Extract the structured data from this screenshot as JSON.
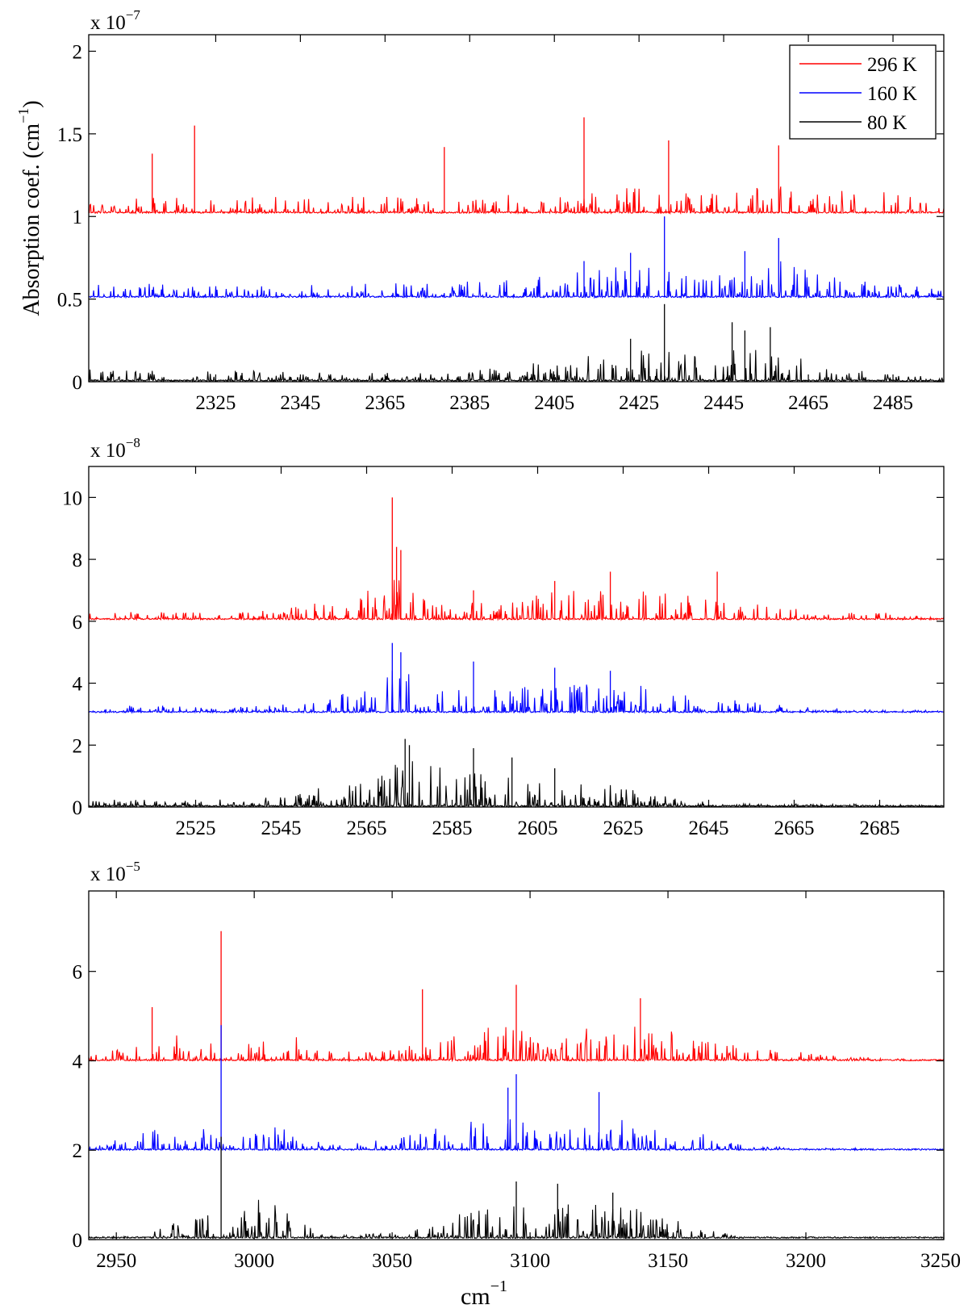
{
  "figure": {
    "ylabel": "Absorption coef. (cm",
    "ylabel_sup": "−1",
    "ylabel_tail": ")",
    "xlabel": "cm",
    "xlabel_sup": "−1"
  },
  "legend": [
    "296 K",
    "160 K",
    "80 K"
  ],
  "colors": {
    "296 K": "#ff0000",
    "160 K": "#0000ff",
    "80 K": "#000000"
  },
  "chart_data": [
    {
      "type": "line",
      "title": "",
      "exponent_prefix": "x 10",
      "exponent": "−7",
      "xlim": [
        2295,
        2497
      ],
      "ylim": [
        0,
        2.1e-07
      ],
      "yticks": [
        0,
        5e-08,
        1e-07,
        1.5e-07,
        2e-07
      ],
      "ytick_labels": [
        "0",
        "0.5",
        "1",
        "1.5",
        "2"
      ],
      "xticks": [
        2325,
        2345,
        2365,
        2385,
        2405,
        2425,
        2445,
        2465,
        2485
      ],
      "xtick_labels": [
        "2325",
        "2345",
        "2365",
        "2385",
        "2405",
        "2425",
        "2445",
        "2465",
        "2485"
      ],
      "series": [
        {
          "name": "296 K",
          "baseline": 1.02e-07,
          "envelope": [
            [
              2295,
              0.12
            ],
            [
              2330,
              0.12
            ],
            [
              2380,
              0.14
            ],
            [
              2410,
              0.18
            ],
            [
              2425,
              0.24
            ],
            [
              2440,
              0.16
            ],
            [
              2458,
              0.25
            ],
            [
              2480,
              0.18
            ],
            [
              2497,
              0.1
            ]
          ],
          "peaks": [
            [
              2310,
              1.38e-07
            ],
            [
              2320,
              1.55e-07
            ],
            [
              2379,
              1.42e-07
            ],
            [
              2412,
              1.6e-07
            ],
            [
              2432,
              1.46e-07
            ],
            [
              2458,
              1.43e-07
            ]
          ]
        },
        {
          "name": "160 K",
          "baseline": 5.1e-08,
          "envelope": [
            [
              2295,
              0.12
            ],
            [
              2330,
              0.1
            ],
            [
              2380,
              0.12
            ],
            [
              2410,
              0.2
            ],
            [
              2425,
              0.28
            ],
            [
              2440,
              0.15
            ],
            [
              2458,
              0.3
            ],
            [
              2480,
              0.14
            ],
            [
              2497,
              0.05
            ]
          ],
          "peaks": [
            [
              2412,
              7.3e-08
            ],
            [
              2423,
              7.8e-08
            ],
            [
              2431,
              1e-07
            ],
            [
              2458,
              8.7e-08
            ],
            [
              2450,
              7.9e-08
            ]
          ]
        },
        {
          "name": "80 K",
          "baseline": 3e-10,
          "envelope": [
            [
              2295,
              0.1
            ],
            [
              2340,
              0.08
            ],
            [
              2380,
              0.06
            ],
            [
              2400,
              0.14
            ],
            [
              2425,
              0.28
            ],
            [
              2440,
              0.2
            ],
            [
              2450,
              0.32
            ],
            [
              2460,
              0.24
            ],
            [
              2480,
              0.06
            ],
            [
              2497,
              0.04
            ]
          ],
          "peaks": [
            [
              2423,
              2.6e-08
            ],
            [
              2431,
              4.7e-08
            ],
            [
              2447,
              3.6e-08
            ],
            [
              2450,
              3.1e-08
            ],
            [
              2456,
              3.3e-08
            ]
          ]
        }
      ]
    },
    {
      "type": "line",
      "title": "",
      "exponent_prefix": "x 10",
      "exponent": "−8",
      "xlim": [
        2500,
        2700
      ],
      "ylim": [
        0,
        1.1e-07
      ],
      "yticks": [
        0,
        2e-08,
        4e-08,
        6e-08,
        8e-08,
        1e-07
      ],
      "ytick_labels": [
        "0",
        "2",
        "4",
        "6",
        "8",
        "10"
      ],
      "xticks": [
        2525,
        2545,
        2565,
        2585,
        2605,
        2625,
        2645,
        2665,
        2685
      ],
      "xtick_labels": [
        "2525",
        "2545",
        "2565",
        "2585",
        "2605",
        "2625",
        "2645",
        "2665",
        "2685"
      ],
      "series": [
        {
          "name": "296 K",
          "baseline": 6.05e-08,
          "envelope": [
            [
              2500,
              0.06
            ],
            [
              2540,
              0.06
            ],
            [
              2560,
              0.18
            ],
            [
              2572,
              0.42
            ],
            [
              2580,
              0.18
            ],
            [
              2605,
              0.22
            ],
            [
              2625,
              0.26
            ],
            [
              2650,
              0.2
            ],
            [
              2670,
              0.08
            ],
            [
              2700,
              0.02
            ]
          ],
          "peaks": [
            [
              2571,
              1e-07
            ],
            [
              2572,
              8.4e-08
            ],
            [
              2573,
              8.3e-08
            ],
            [
              2590,
              7e-08
            ],
            [
              2609,
              7.3e-08
            ],
            [
              2622,
              7.6e-08
            ],
            [
              2647,
              7.6e-08
            ]
          ]
        },
        {
          "name": "160 K",
          "baseline": 3.05e-08,
          "envelope": [
            [
              2500,
              0.05
            ],
            [
              2540,
              0.05
            ],
            [
              2560,
              0.16
            ],
            [
              2572,
              0.4
            ],
            [
              2580,
              0.2
            ],
            [
              2605,
              0.22
            ],
            [
              2625,
              0.24
            ],
            [
              2645,
              0.14
            ],
            [
              2665,
              0.04
            ],
            [
              2700,
              0.01
            ]
          ],
          "peaks": [
            [
              2571,
              5.3e-08
            ],
            [
              2573,
              5e-08
            ],
            [
              2590,
              4.7e-08
            ],
            [
              2609,
              4.5e-08
            ],
            [
              2622,
              4.4e-08
            ]
          ]
        },
        {
          "name": "80 K",
          "baseline": 1e-10,
          "envelope": [
            [
              2500,
              0.05
            ],
            [
              2540,
              0.06
            ],
            [
              2566,
              0.24
            ],
            [
              2574,
              0.4
            ],
            [
              2590,
              0.28
            ],
            [
              2605,
              0.24
            ],
            [
              2620,
              0.2
            ],
            [
              2635,
              0.08
            ],
            [
              2650,
              0.02
            ],
            [
              2700,
              0.01
            ]
          ],
          "peaks": [
            [
              2574,
              2.2e-08
            ],
            [
              2575,
              2e-08
            ],
            [
              2590,
              1.9e-08
            ],
            [
              2599,
              1.6e-08
            ],
            [
              2609,
              1.25e-08
            ]
          ]
        }
      ]
    },
    {
      "type": "line",
      "title": "",
      "exponent_prefix": "x 10",
      "exponent": "−5",
      "xlim": [
        2940,
        3250
      ],
      "ylim": [
        0,
        7.8e-05
      ],
      "yticks": [
        0,
        2e-05,
        4e-05,
        6e-05
      ],
      "ytick_labels": [
        "0",
        "2",
        "4",
        "6"
      ],
      "xticks": [
        2950,
        3000,
        3050,
        3100,
        3150,
        3200,
        3250
      ],
      "xtick_labels": [
        "2950",
        "3000",
        "3050",
        "3100",
        "3150",
        "3200",
        "3250"
      ],
      "series": [
        {
          "name": "296 K",
          "baseline": 4e-05,
          "envelope": [
            [
              2940,
              0.02
            ],
            [
              2955,
              0.16
            ],
            [
              2970,
              0.22
            ],
            [
              2985,
              0.16
            ],
            [
              2990,
              0.02
            ],
            [
              3000,
              0.18
            ],
            [
              3012,
              0.22
            ],
            [
              3030,
              0.08
            ],
            [
              3050,
              0.08
            ],
            [
              3075,
              0.25
            ],
            [
              3095,
              0.3
            ],
            [
              3105,
              0.12
            ],
            [
              3125,
              0.3
            ],
            [
              3140,
              0.28
            ],
            [
              3160,
              0.2
            ],
            [
              3180,
              0.1
            ],
            [
              3210,
              0.04
            ],
            [
              3230,
              0.01
            ],
            [
              3250,
              0.0
            ]
          ],
          "peaks": [
            [
              2988,
              6.9e-05
            ],
            [
              3061,
              5.6e-05
            ],
            [
              3095,
              5.7e-05
            ],
            [
              3140,
              5.4e-05
            ],
            [
              2963,
              5.2e-05
            ]
          ]
        },
        {
          "name": "160 K",
          "baseline": 2e-05,
          "envelope": [
            [
              2940,
              0.01
            ],
            [
              2955,
              0.12
            ],
            [
              2972,
              0.24
            ],
            [
              2985,
              0.16
            ],
            [
              2990,
              0.02
            ],
            [
              3000,
              0.22
            ],
            [
              3010,
              0.2
            ],
            [
              3025,
              0.04
            ],
            [
              3050,
              0.08
            ],
            [
              3075,
              0.24
            ],
            [
              3095,
              0.3
            ],
            [
              3105,
              0.12
            ],
            [
              3125,
              0.28
            ],
            [
              3140,
              0.22
            ],
            [
              3160,
              0.14
            ],
            [
              3175,
              0.05
            ],
            [
              3200,
              0.01
            ],
            [
              3250,
              0.0
            ]
          ],
          "peaks": [
            [
              2988,
              4.8e-05
            ],
            [
              3095,
              3.7e-05
            ],
            [
              3125,
              3.3e-05
            ],
            [
              3092,
              3.4e-05
            ]
          ]
        },
        {
          "name": "80 K",
          "baseline": 3e-07,
          "envelope": [
            [
              2940,
              0.0
            ],
            [
              2960,
              0.02
            ],
            [
              2975,
              0.16
            ],
            [
              2985,
              0.2
            ],
            [
              2990,
              0.04
            ],
            [
              3000,
              0.32
            ],
            [
              3010,
              0.26
            ],
            [
              3025,
              0.02
            ],
            [
              3050,
              0.04
            ],
            [
              3075,
              0.2
            ],
            [
              3095,
              0.32
            ],
            [
              3105,
              0.12
            ],
            [
              3115,
              0.34
            ],
            [
              3130,
              0.3
            ],
            [
              3150,
              0.16
            ],
            [
              3170,
              0.04
            ],
            [
              3180,
              0.0
            ],
            [
              3250,
              0.0
            ]
          ],
          "peaks": [
            [
              2988,
              2.3e-05
            ],
            [
              3095,
              1.3e-05
            ],
            [
              3110,
              1.25e-05
            ],
            [
              3130,
              1.05e-05
            ]
          ]
        }
      ]
    }
  ]
}
